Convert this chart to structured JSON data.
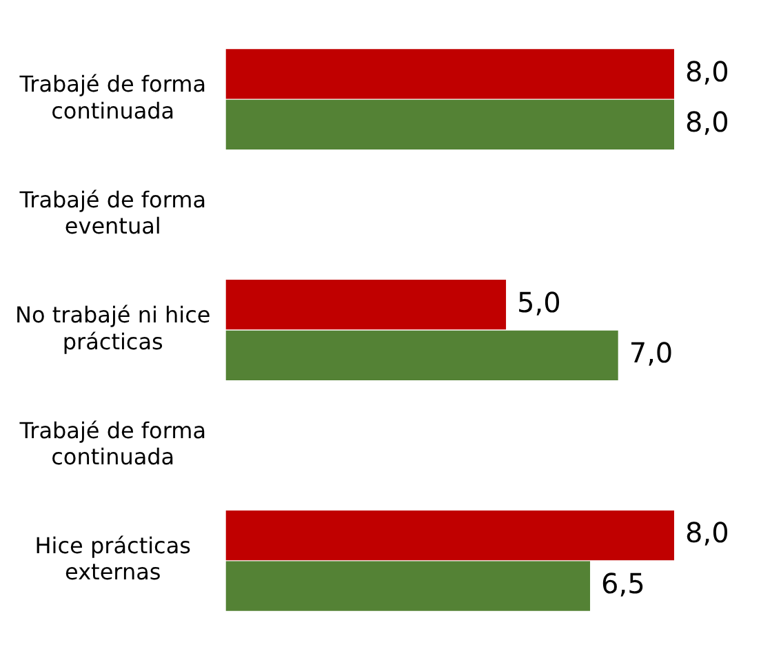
{
  "chart_data": {
    "type": "bar",
    "orientation": "horizontal",
    "legend": false,
    "categories": [
      "Trabajé de forma continuada",
      "Trabajé de forma eventual",
      "No trabajé ni hice prácticas",
      "Trabajé de forma continuada",
      "Hice prácticas externas"
    ],
    "series": [
      {
        "color": "#c00000",
        "values": [
          8,
          null,
          5,
          null,
          8
        ],
        "value_labels": [
          "8,0",
          null,
          "5,0",
          null,
          "8,0"
        ]
      },
      {
        "color": "#548235",
        "values": [
          8,
          null,
          7,
          null,
          6.5
        ],
        "value_labels": [
          "8,0",
          null,
          "7,0",
          null,
          "6,5"
        ]
      }
    ]
  }
}
